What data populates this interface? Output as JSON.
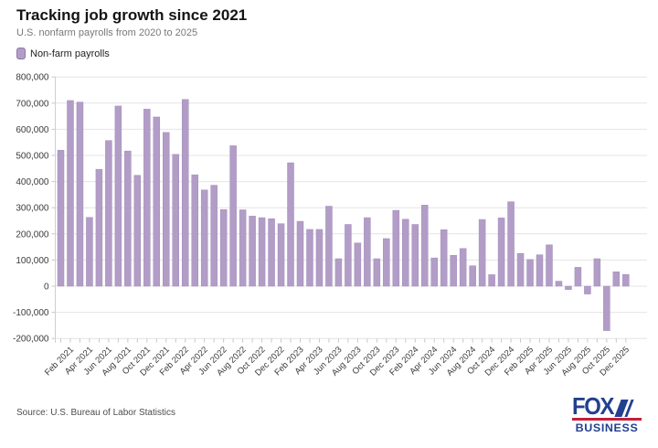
{
  "header": {
    "title": "Tracking job growth since 2021",
    "subtitle": "U.S. nonfarm payrolls from 2020 to 2025"
  },
  "legend": {
    "label": "Non-farm payrolls",
    "swatch_color": "#b29dc7"
  },
  "chart_data": {
    "type": "bar",
    "title": "Tracking job growth since 2021",
    "subtitle": "U.S. nonfarm payrolls from 2020 to 2025",
    "series_name": "Non-farm payrolls",
    "x": [
      "Jan 2021",
      "Feb 2021",
      "Mar 2021",
      "Apr 2021",
      "May 2021",
      "Jun 2021",
      "Jul 2021",
      "Aug 2021",
      "Sep 2021",
      "Oct 2021",
      "Nov 2021",
      "Dec 2021",
      "Jan 2022",
      "Feb 2022",
      "Mar 2022",
      "Apr 2022",
      "May 2022",
      "Jun 2022",
      "Jul 2022",
      "Aug 2022",
      "Sep 2022",
      "Oct 2022",
      "Nov 2022",
      "Dec 2022",
      "Jan 2023",
      "Feb 2023",
      "Mar 2023",
      "Apr 2023",
      "May 2023",
      "Jun 2023",
      "Jul 2023",
      "Aug 2023",
      "Sep 2023",
      "Oct 2023",
      "Nov 2023",
      "Dec 2023",
      "Jan 2024",
      "Feb 2024",
      "Mar 2024",
      "Apr 2024",
      "May 2024",
      "Jun 2024",
      "Jul 2024",
      "Aug 2024",
      "Sep 2024",
      "Oct 2024",
      "Nov 2024",
      "Dec 2024",
      "Jan 2025",
      "Feb 2025",
      "Mar 2025",
      "Apr 2025",
      "May 2025",
      "Jun 2025",
      "Jul 2025",
      "Aug 2025",
      "Sep 2025",
      "Oct 2025",
      "Nov 2025",
      "Dec 2025"
    ],
    "values": [
      520000,
      710000,
      704000,
      263000,
      447000,
      557000,
      689000,
      517000,
      424000,
      677000,
      647000,
      588000,
      504000,
      714000,
      426000,
      368000,
      386000,
      293000,
      537000,
      292000,
      268000,
      262000,
      258000,
      239000,
      472000,
      248000,
      217000,
      217000,
      306000,
      105000,
      236000,
      165000,
      262000,
      105000,
      182000,
      290000,
      256000,
      236000,
      310000,
      108000,
      216000,
      118000,
      144000,
      78000,
      255000,
      44000,
      261000,
      323000,
      125000,
      102000,
      120000,
      158000,
      19000,
      -13000,
      72000,
      -30000,
      105000,
      -170000,
      55000,
      45000
    ],
    "x_tick_every": 2,
    "y_ticks": [
      800000,
      700000,
      600000,
      500000,
      400000,
      300000,
      200000,
      100000,
      0,
      -100000,
      -200000
    ],
    "ylim": [
      -200000,
      800000
    ],
    "grid": true,
    "legend_position": "top-left",
    "bar_color": "#b29dc7",
    "bar_border_color": "#a38cbc",
    "grid_color": "#e4e4e4",
    "axis_text_color": "#3a3a3a"
  },
  "footer": {
    "source": "Source: U.S. Bureau of Labor Statistics",
    "logo": {
      "line1": "FOX",
      "line2": "BUSINESS",
      "navy": "#23408f",
      "red": "#c41e3a"
    }
  }
}
